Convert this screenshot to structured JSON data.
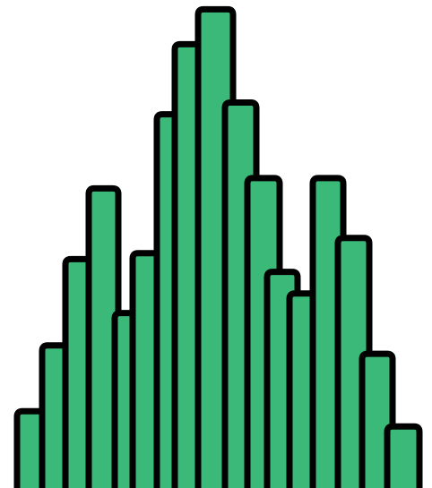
{
  "colors": {
    "background": "#ffffff",
    "column_fill": "#3bb979",
    "column_stroke": "#000000"
  },
  "columns": [
    {
      "id": "col-01",
      "relative_height": 0.162
    },
    {
      "id": "col-02",
      "relative_height": 0.296
    },
    {
      "id": "col-03",
      "relative_height": 0.472
    },
    {
      "id": "col-04",
      "relative_height": 0.616
    },
    {
      "id": "col-05",
      "relative_height": 0.362
    },
    {
      "id": "col-06",
      "relative_height": 0.484
    },
    {
      "id": "col-07",
      "relative_height": 0.767
    },
    {
      "id": "col-08",
      "relative_height": 0.91
    },
    {
      "id": "col-09",
      "relative_height": 0.981
    },
    {
      "id": "col-10",
      "relative_height": 0.791
    },
    {
      "id": "col-11",
      "relative_height": 0.637
    },
    {
      "id": "col-12",
      "relative_height": 0.446
    },
    {
      "id": "col-13",
      "relative_height": 0.402
    },
    {
      "id": "col-14",
      "relative_height": 0.637
    },
    {
      "id": "col-15",
      "relative_height": 0.515
    },
    {
      "id": "col-16",
      "relative_height": 0.279
    },
    {
      "id": "col-17",
      "relative_height": 0.131
    }
  ]
}
